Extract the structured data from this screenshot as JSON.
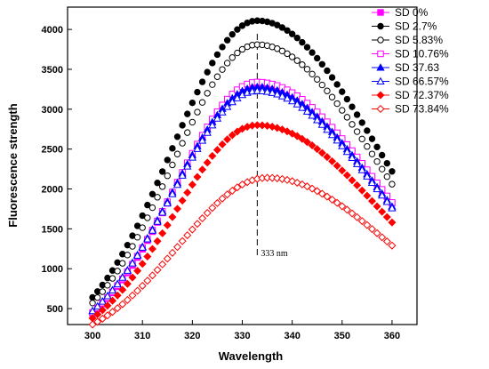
{
  "chart_data": {
    "type": "scatter",
    "xlabel": "Wavelength",
    "ylabel": "Fluorescence strength",
    "xlim": [
      295,
      365
    ],
    "ylim": [
      300,
      4280
    ],
    "xticks": [
      300,
      310,
      320,
      330,
      340,
      350,
      360
    ],
    "yticks": [
      500,
      1000,
      1500,
      2000,
      2500,
      3000,
      3500,
      4000
    ],
    "grid": false,
    "legend_position": "top-right outside",
    "annotation": {
      "text": "333 nm",
      "x": 333,
      "style": "vertical dashed line"
    },
    "series": [
      {
        "name": "SD 0%",
        "color": "#ff00ff",
        "marker": "square",
        "filled": true,
        "peak_x": 333,
        "peak": 3320,
        "start": 440,
        "end": 1820
      },
      {
        "name": "SD 2.7%",
        "color": "#000000",
        "marker": "circle",
        "filled": true,
        "peak_x": 333,
        "peak": 4110,
        "start": 640,
        "end": 2220
      },
      {
        "name": "SD 5.83%",
        "color": "#000000",
        "marker": "circle",
        "filled": false,
        "peak_x": 333,
        "peak": 3810,
        "start": 570,
        "end": 2060
      },
      {
        "name": "SD 10.76%",
        "color": "#ff00ff",
        "marker": "square",
        "filled": false,
        "peak_x": 333,
        "peak": 3340,
        "start": 450,
        "end": 1830
      },
      {
        "name": "SD 37.63",
        "color": "#0000ff",
        "marker": "triangle",
        "filled": true,
        "peak_x": 333,
        "peak": 3280,
        "start": 470,
        "end": 1780
      },
      {
        "name": "SD 66.57%",
        "color": "#0000ff",
        "marker": "triangle",
        "filled": false,
        "peak_x": 333,
        "peak": 3230,
        "start": 470,
        "end": 1760
      },
      {
        "name": "SD 72.37%",
        "color": "#ff0000",
        "marker": "diamond",
        "filled": true,
        "peak_x": 333,
        "peak": 2800,
        "start": 380,
        "end": 1580
      },
      {
        "name": "SD 73.84%",
        "color": "#ff0000",
        "marker": "diamond",
        "filled": false,
        "peak_x": 335,
        "peak": 2140,
        "start": 300,
        "end": 1290
      }
    ]
  }
}
